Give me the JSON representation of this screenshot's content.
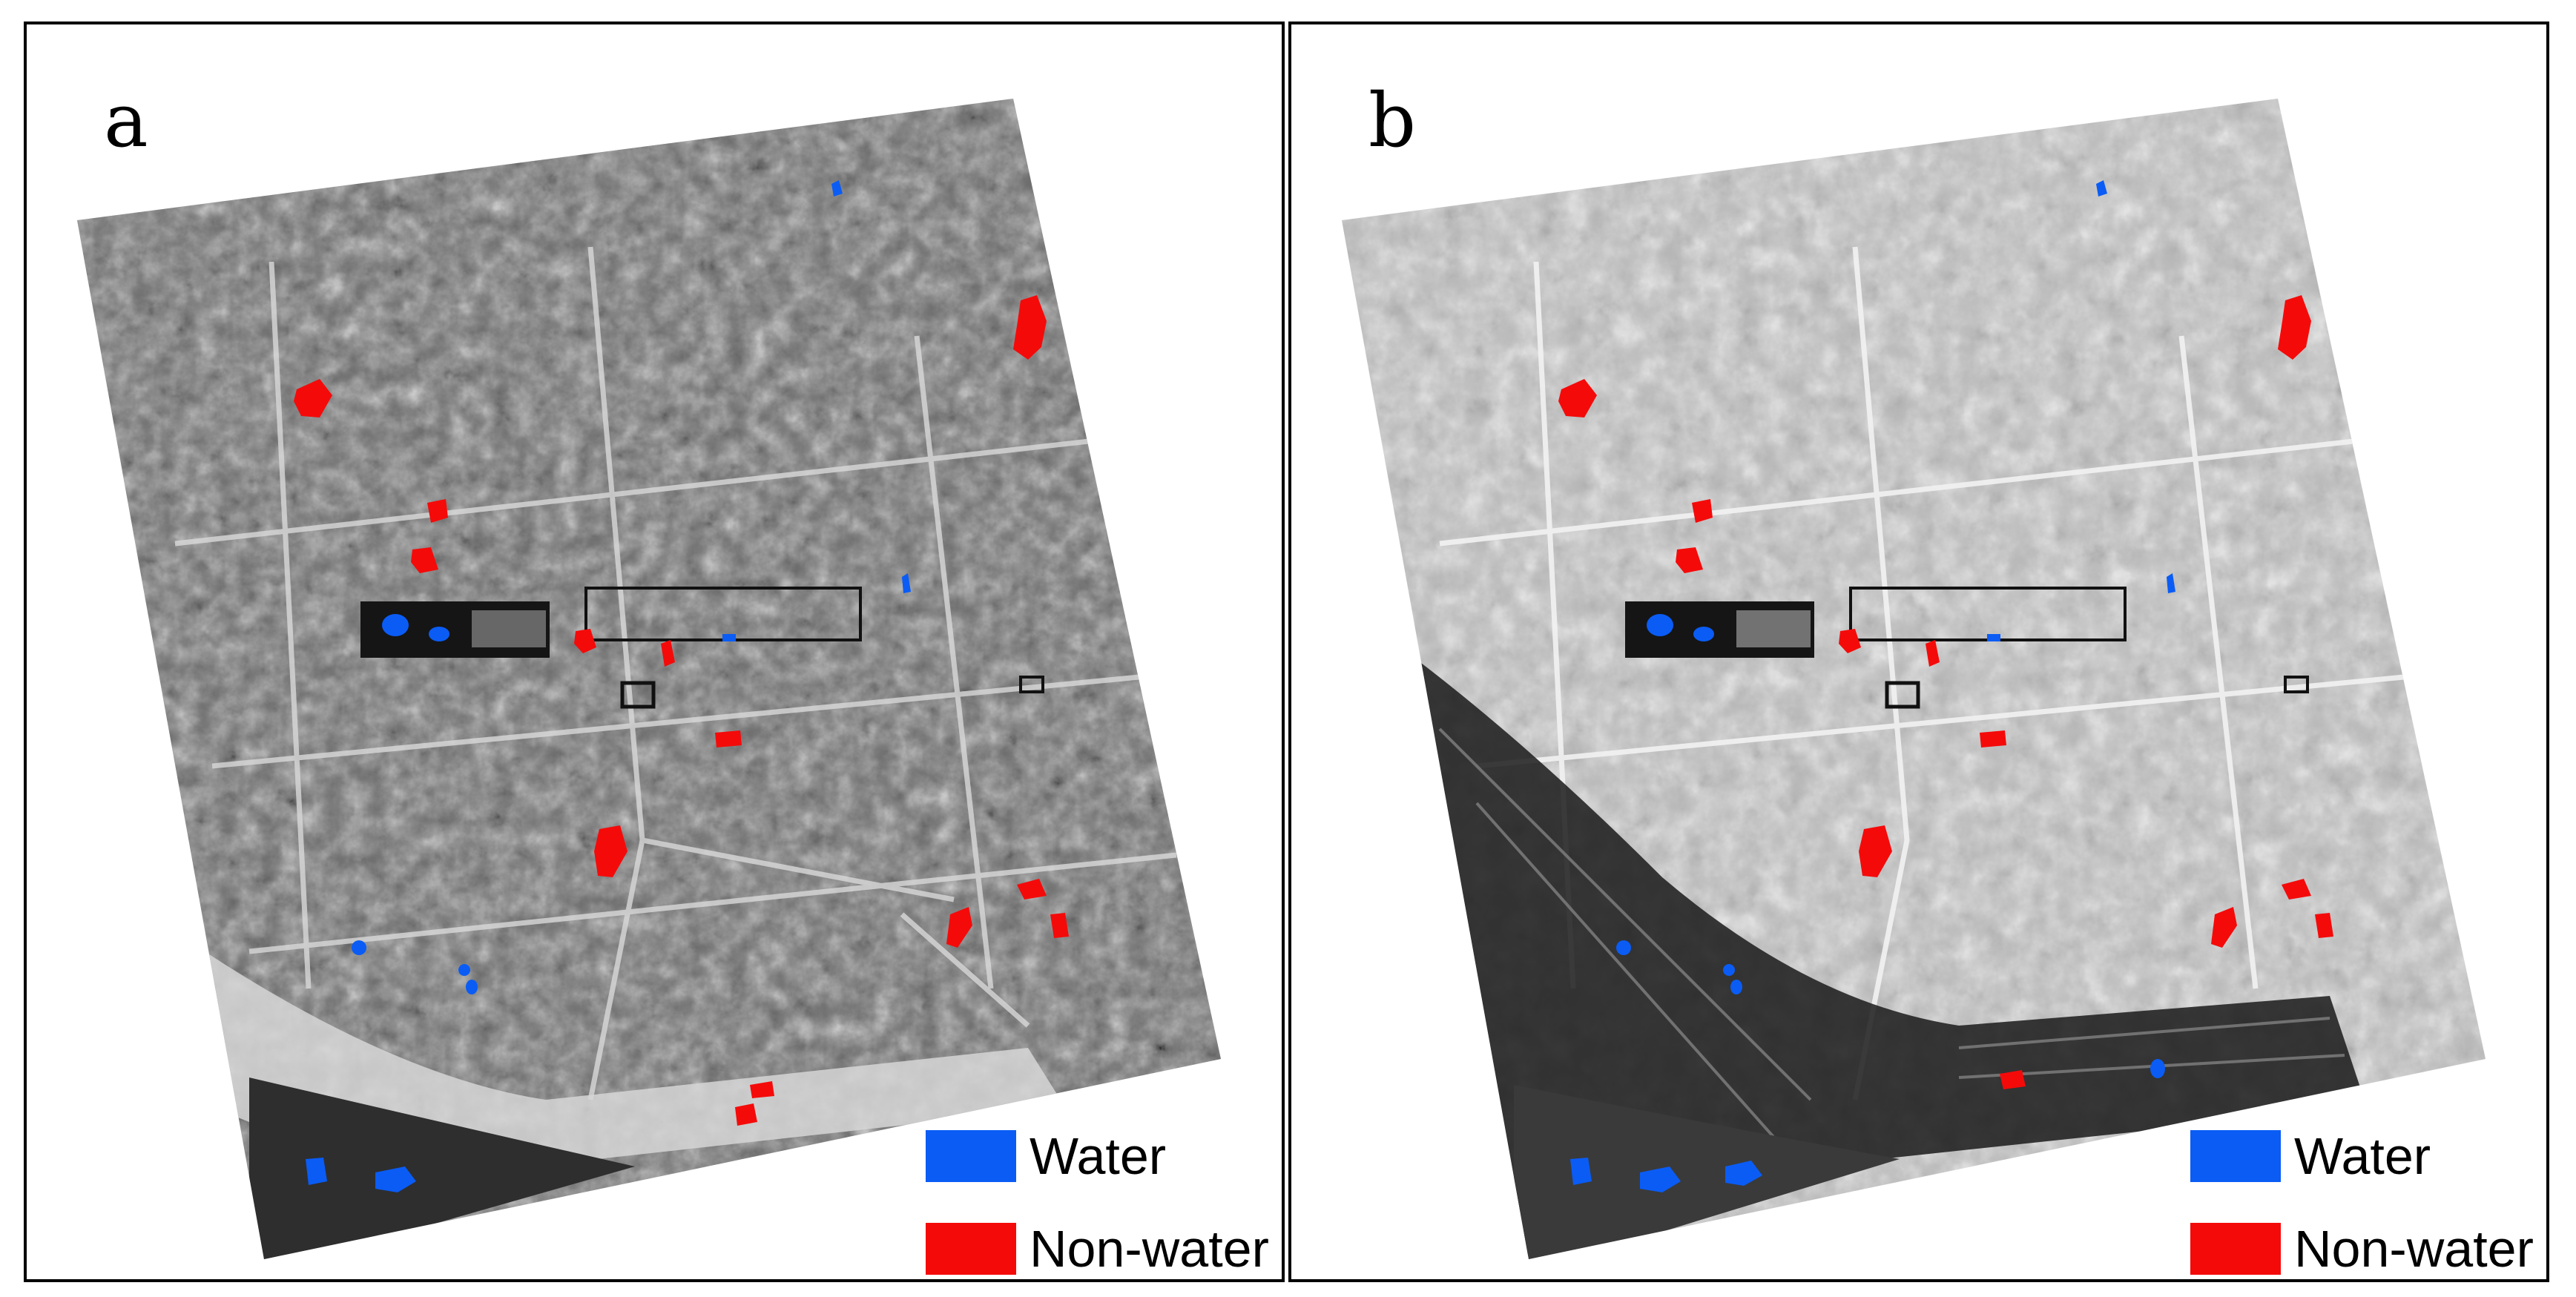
{
  "figure": {
    "panels": [
      {
        "label": "a"
      },
      {
        "label": "b"
      }
    ],
    "legend": {
      "items": [
        {
          "label": "Water",
          "color": "#0a5cf5"
        },
        {
          "label": "Non-water",
          "color": "#f50a0a"
        }
      ]
    },
    "colors": {
      "water": "#0a5cf5",
      "non_water": "#f50a0a",
      "panel_border": "#000000"
    }
  }
}
